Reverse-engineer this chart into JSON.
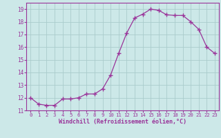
{
  "x": [
    0,
    1,
    2,
    3,
    4,
    5,
    6,
    7,
    8,
    9,
    10,
    11,
    12,
    13,
    14,
    15,
    16,
    17,
    18,
    19,
    20,
    21,
    22,
    23
  ],
  "y": [
    12.0,
    11.5,
    11.4,
    11.4,
    11.9,
    11.9,
    12.0,
    12.3,
    12.3,
    12.7,
    13.8,
    15.5,
    17.1,
    18.3,
    18.6,
    19.0,
    18.9,
    18.55,
    18.5,
    18.5,
    18.0,
    17.4,
    16.0,
    15.5
  ],
  "line_color": "#993399",
  "marker": "+",
  "marker_color": "#993399",
  "bg_color": "#cce8e8",
  "grid_color": "#aacccc",
  "xlabel": "Windchill (Refroidissement éolien,°C)",
  "ylabel": "",
  "xlim_min": -0.5,
  "xlim_max": 23.5,
  "ylim_min": 11,
  "ylim_max": 19.5,
  "yticks": [
    11,
    12,
    13,
    14,
    15,
    16,
    17,
    18,
    19
  ],
  "xticks": [
    0,
    1,
    2,
    3,
    4,
    5,
    6,
    7,
    8,
    9,
    10,
    11,
    12,
    13,
    14,
    15,
    16,
    17,
    18,
    19,
    20,
    21,
    22,
    23
  ],
  "line_color_spine": "#993399",
  "tick_color": "#993399",
  "font_family": "monospace",
  "xlabel_fontsize": 6.0,
  "xtick_fontsize": 5.2,
  "ytick_fontsize": 5.5
}
